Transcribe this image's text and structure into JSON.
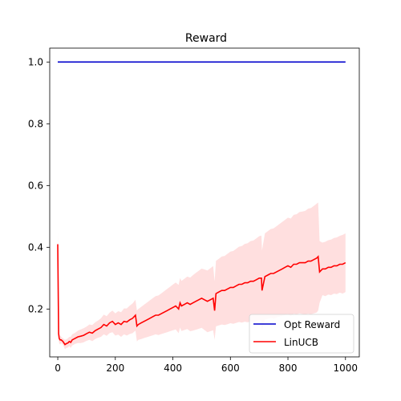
{
  "chart_data": {
    "type": "line",
    "title": "Reward",
    "xlabel": "",
    "ylabel": "",
    "xlim": [
      -28,
      1048
    ],
    "ylim": [
      0.045,
      1.045
    ],
    "xticks": [
      0,
      200,
      400,
      600,
      800,
      1000
    ],
    "xtick_labels": [
      "0",
      "200",
      "400",
      "600",
      "800",
      "1000"
    ],
    "yticks": [
      0.2,
      0.4,
      0.6,
      0.8,
      1.0
    ],
    "ytick_labels": [
      "0.2",
      "0.4",
      "0.6",
      "0.8",
      "1.0"
    ],
    "grid": false,
    "legend_position": "lower-right",
    "series": [
      {
        "name": "Opt Reward",
        "color": "#0000cc",
        "x": [
          0,
          1000
        ],
        "y": [
          1.0,
          1.0
        ]
      },
      {
        "name": "LinUCB",
        "color": "#ff0000",
        "band_color": "#ffdcdc",
        "x": [
          0,
          3,
          5,
          8,
          12,
          18,
          25,
          30,
          35,
          40,
          45,
          50,
          60,
          70,
          80,
          90,
          100,
          110,
          120,
          130,
          140,
          150,
          160,
          170,
          180,
          190,
          200,
          210,
          220,
          230,
          240,
          250,
          260,
          270,
          275,
          280,
          290,
          300,
          310,
          320,
          330,
          340,
          350,
          360,
          370,
          380,
          390,
          400,
          410,
          420,
          425,
          430,
          440,
          450,
          460,
          470,
          480,
          490,
          500,
          510,
          520,
          530,
          540,
          545,
          550,
          560,
          570,
          580,
          590,
          600,
          610,
          620,
          630,
          640,
          650,
          660,
          670,
          680,
          690,
          700,
          708,
          710,
          720,
          730,
          740,
          750,
          760,
          770,
          780,
          790,
          800,
          810,
          820,
          830,
          840,
          850,
          860,
          870,
          880,
          890,
          900,
          905,
          910,
          920,
          930,
          940,
          950,
          960,
          970,
          980,
          990,
          1000
        ],
        "y": [
          0.41,
          0.12,
          0.105,
          0.1,
          0.1,
          0.095,
          0.085,
          0.088,
          0.09,
          0.095,
          0.092,
          0.1,
          0.105,
          0.11,
          0.112,
          0.115,
          0.12,
          0.125,
          0.122,
          0.13,
          0.135,
          0.14,
          0.15,
          0.145,
          0.155,
          0.16,
          0.15,
          0.155,
          0.15,
          0.16,
          0.158,
          0.165,
          0.17,
          0.18,
          0.145,
          0.15,
          0.155,
          0.16,
          0.165,
          0.17,
          0.175,
          0.18,
          0.18,
          0.185,
          0.19,
          0.195,
          0.2,
          0.205,
          0.21,
          0.2,
          0.22,
          0.21,
          0.215,
          0.22,
          0.215,
          0.22,
          0.225,
          0.23,
          0.235,
          0.23,
          0.225,
          0.23,
          0.235,
          0.195,
          0.25,
          0.255,
          0.26,
          0.26,
          0.265,
          0.27,
          0.27,
          0.275,
          0.28,
          0.28,
          0.285,
          0.285,
          0.29,
          0.29,
          0.295,
          0.3,
          0.3,
          0.26,
          0.305,
          0.31,
          0.315,
          0.315,
          0.32,
          0.325,
          0.33,
          0.335,
          0.34,
          0.335,
          0.345,
          0.345,
          0.35,
          0.35,
          0.35,
          0.355,
          0.355,
          0.36,
          0.365,
          0.37,
          0.32,
          0.33,
          0.33,
          0.335,
          0.335,
          0.34,
          0.34,
          0.345,
          0.345,
          0.35
        ],
        "upper": [
          0.45,
          0.14,
          0.12,
          0.115,
          0.11,
          0.105,
          0.1,
          0.102,
          0.105,
          0.11,
          0.11,
          0.118,
          0.123,
          0.13,
          0.134,
          0.138,
          0.143,
          0.15,
          0.148,
          0.157,
          0.163,
          0.17,
          0.182,
          0.177,
          0.188,
          0.195,
          0.186,
          0.193,
          0.19,
          0.202,
          0.202,
          0.211,
          0.218,
          0.23,
          0.195,
          0.2,
          0.207,
          0.214,
          0.221,
          0.228,
          0.235,
          0.242,
          0.244,
          0.251,
          0.258,
          0.265,
          0.272,
          0.279,
          0.286,
          0.278,
          0.3,
          0.291,
          0.298,
          0.305,
          0.302,
          0.31,
          0.317,
          0.324,
          0.331,
          0.328,
          0.325,
          0.332,
          0.339,
          0.29,
          0.356,
          0.363,
          0.37,
          0.372,
          0.379,
          0.386,
          0.388,
          0.395,
          0.402,
          0.404,
          0.411,
          0.413,
          0.42,
          0.422,
          0.429,
          0.436,
          0.438,
          0.39,
          0.445,
          0.452,
          0.459,
          0.461,
          0.468,
          0.475,
          0.482,
          0.489,
          0.496,
          0.493,
          0.505,
          0.507,
          0.514,
          0.516,
          0.518,
          0.525,
          0.527,
          0.534,
          0.541,
          0.545,
          0.42,
          0.415,
          0.418,
          0.423,
          0.425,
          0.43,
          0.432,
          0.437,
          0.44,
          0.445
        ],
        "lower": [
          0.37,
          0.1,
          0.09,
          0.085,
          0.09,
          0.085,
          0.07,
          0.074,
          0.075,
          0.08,
          0.074,
          0.082,
          0.087,
          0.09,
          0.09,
          0.092,
          0.097,
          0.1,
          0.096,
          0.103,
          0.107,
          0.11,
          0.118,
          0.113,
          0.122,
          0.125,
          0.114,
          0.117,
          0.11,
          0.118,
          0.114,
          0.119,
          0.122,
          0.13,
          0.095,
          0.1,
          0.103,
          0.106,
          0.109,
          0.112,
          0.115,
          0.118,
          0.116,
          0.119,
          0.122,
          0.125,
          0.128,
          0.131,
          0.134,
          0.122,
          0.14,
          0.129,
          0.132,
          0.135,
          0.128,
          0.13,
          0.133,
          0.136,
          0.139,
          0.132,
          0.125,
          0.128,
          0.131,
          0.1,
          0.144,
          0.147,
          0.15,
          0.148,
          0.151,
          0.154,
          0.152,
          0.155,
          0.158,
          0.156,
          0.159,
          0.157,
          0.16,
          0.158,
          0.161,
          0.164,
          0.162,
          0.13,
          0.165,
          0.168,
          0.171,
          0.169,
          0.172,
          0.175,
          0.178,
          0.181,
          0.184,
          0.177,
          0.185,
          0.183,
          0.186,
          0.184,
          0.182,
          0.185,
          0.183,
          0.186,
          0.189,
          0.195,
          0.22,
          0.245,
          0.242,
          0.247,
          0.245,
          0.25,
          0.248,
          0.253,
          0.25,
          0.255
        ]
      }
    ]
  }
}
